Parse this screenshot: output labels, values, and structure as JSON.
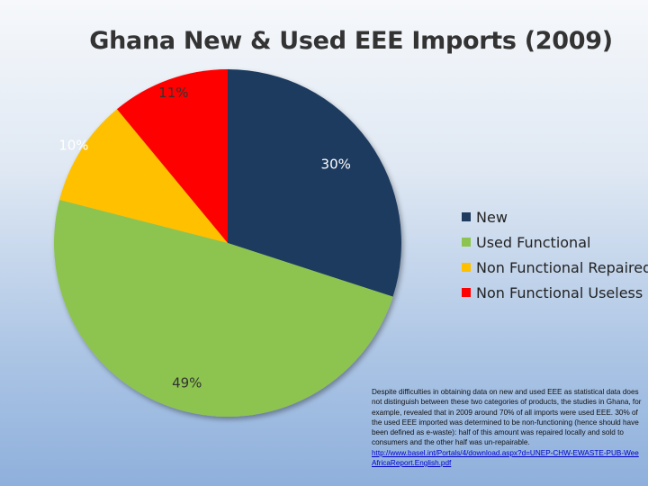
{
  "chart_data": {
    "type": "pie",
    "title": "Ghana New & Used EEE Imports (2009)",
    "categories": [
      "New",
      "Used Functional",
      "Non Functional Repaired",
      "Non Functional Useless"
    ],
    "values": [
      30,
      49,
      10,
      11
    ],
    "labels": [
      "30%",
      "49%",
      "10%",
      "11%"
    ],
    "colors": [
      "#1f3a5f",
      "#8dc450",
      "#ffc000",
      "#ff0000"
    ],
    "label_colors": [
      "#ffffff",
      "#333333",
      "#ffffff",
      "#333333"
    ],
    "legend_position": "right"
  },
  "note": {
    "text": "Despite difficulties in obtaining data on new and used EEE as statistical data does not distinguish between these two categories of products, the studies in Ghana, for example, revealed that in 2009 around 70% of all imports were used EEE. 30% of the used EEE imported was determined to be non-functioning (hence should have been defined as e-waste): half of this amount was repaired locally and sold to consumers and the other half was un-repairable.",
    "link": "http://www.basel.int/Portals/4/download.aspx?d=UNEP-CHW-EWASTE-PUB-WeeAfricaReport.English.pdf"
  }
}
